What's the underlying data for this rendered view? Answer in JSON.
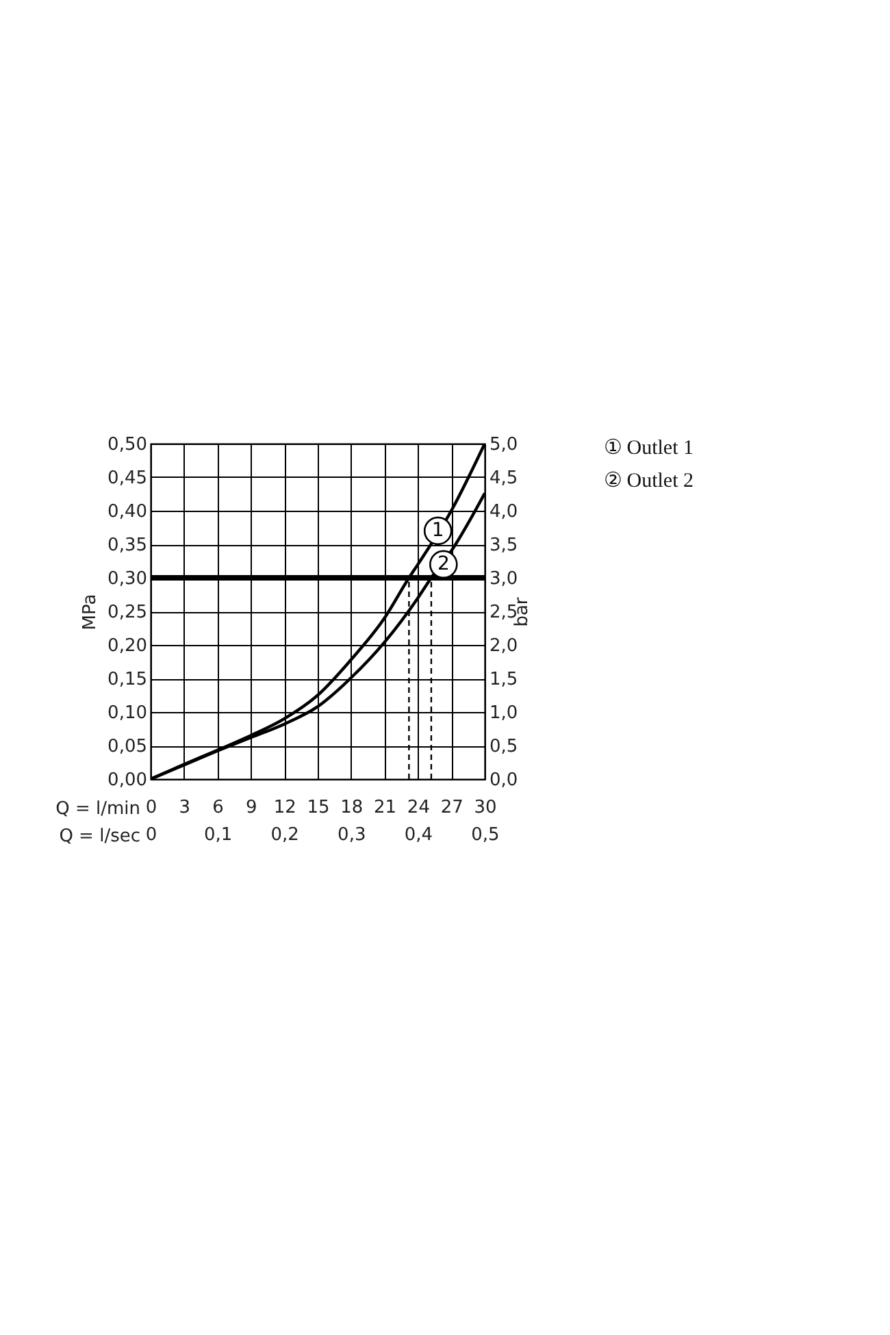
{
  "chart_data": {
    "type": "line",
    "xlabel": "Q = l/min",
    "ylabel": "MPa",
    "y2label": "bar",
    "x2label": "Q = l/sec",
    "xlim": [
      0,
      30
    ],
    "xticks": [
      0,
      3,
      6,
      9,
      12,
      15,
      18,
      21,
      24,
      27,
      30
    ],
    "x2lim": [
      0,
      0.5
    ],
    "x2ticks": [
      0,
      {
        "value": 0.1,
        "label": "0,1"
      },
      {
        "value": 0.2,
        "label": "0,2"
      },
      {
        "value": 0.3,
        "label": "0,3"
      },
      {
        "value": 0.4,
        "label": "0,4"
      },
      {
        "value": 0.5,
        "label": "0,5"
      }
    ],
    "ylim": [
      0,
      0.5
    ],
    "yticks": [
      {
        "value": 0,
        "label": "0,00"
      },
      {
        "value": 0.05,
        "label": "0,05"
      },
      {
        "value": 0.1,
        "label": "0,10"
      },
      {
        "value": 0.15,
        "label": "0,15"
      },
      {
        "value": 0.2,
        "label": "0,20"
      },
      {
        "value": 0.25,
        "label": "0,25"
      },
      {
        "value": 0.3,
        "label": "0,30"
      },
      {
        "value": 0.35,
        "label": "0,35"
      },
      {
        "value": 0.4,
        "label": "0,40"
      },
      {
        "value": 0.45,
        "label": "0,45"
      },
      {
        "value": 0.5,
        "label": "0,50"
      }
    ],
    "y2lim": [
      0,
      5
    ],
    "y2ticks": [
      {
        "value": 0,
        "label": "0,0"
      },
      {
        "value": 0.5,
        "label": "0,5"
      },
      {
        "value": 1,
        "label": "1,0"
      },
      {
        "value": 1.5,
        "label": "1,5"
      },
      {
        "value": 2,
        "label": "2,0"
      },
      {
        "value": 2.5,
        "label": "2,5"
      },
      {
        "value": 3,
        "label": "3,0"
      },
      {
        "value": 3.5,
        "label": "3,5"
      },
      {
        "value": 4,
        "label": "4,0"
      },
      {
        "value": 4.5,
        "label": "4,5"
      },
      {
        "value": 5,
        "label": "5,0"
      }
    ],
    "grid": true,
    "legend": "right",
    "line_style": "solid",
    "series": [
      {
        "name": "① Outlet 1",
        "color": "#000000",
        "x": [
          0,
          3,
          6,
          9,
          12,
          15,
          18,
          21,
          23.2,
          24,
          27,
          30
        ],
        "values": [
          0,
          0.022,
          0.043,
          0.065,
          0.09,
          0.125,
          0.178,
          0.24,
          0.3,
          0.32,
          0.4,
          0.5
        ]
      },
      {
        "name": "② Outlet 2",
        "color": "#000000",
        "x": [
          0,
          3,
          6,
          9,
          12,
          15,
          18,
          21,
          24,
          25.2,
          27,
          30
        ],
        "values": [
          0,
          0.021,
          0.042,
          0.062,
          0.082,
          0.108,
          0.151,
          0.204,
          0.27,
          0.3,
          0.34,
          0.426
        ]
      }
    ],
    "ref_lines": [
      {
        "axis": "y",
        "value": 0.3,
        "color": "#000000"
      },
      {
        "axis": "x",
        "value": 23.2,
        "line_style": "dashed",
        "color": "#000000"
      },
      {
        "axis": "x",
        "value": 25.2,
        "line_style": "dashed",
        "color": "#000000"
      }
    ],
    "annotations": [
      {
        "text": "1",
        "x": 25.8,
        "y": 0.37
      },
      {
        "text": "2",
        "x": 26.3,
        "y": 0.32
      }
    ]
  }
}
